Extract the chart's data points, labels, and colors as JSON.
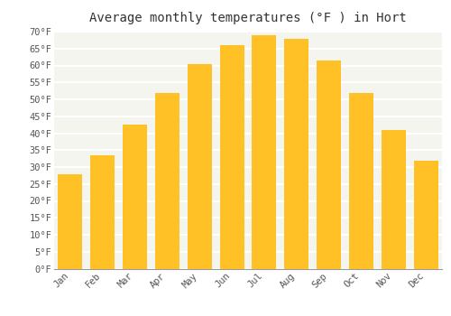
{
  "title": "Average monthly temperatures (°F ) in Hort",
  "months": [
    "Jan",
    "Feb",
    "Mar",
    "Apr",
    "May",
    "Jun",
    "Jul",
    "Aug",
    "Sep",
    "Oct",
    "Nov",
    "Dec"
  ],
  "values": [
    28,
    33.5,
    42.5,
    52,
    60.5,
    66,
    69,
    68,
    61.5,
    52,
    41,
    32
  ],
  "bar_color_top": "#FFC125",
  "bar_color_bottom": "#FFB300",
  "bar_edge_color": "none",
  "background_color": "#FFFFFF",
  "plot_bg_color": "#F5F5F0",
  "grid_color": "#FFFFFF",
  "text_color": "#555555",
  "title_color": "#333333",
  "ylim": [
    0,
    70
  ],
  "yticks": [
    0,
    5,
    10,
    15,
    20,
    25,
    30,
    35,
    40,
    45,
    50,
    55,
    60,
    65,
    70
  ],
  "title_fontsize": 10,
  "tick_fontsize": 7.5,
  "font_family": "monospace",
  "bar_width": 0.75
}
